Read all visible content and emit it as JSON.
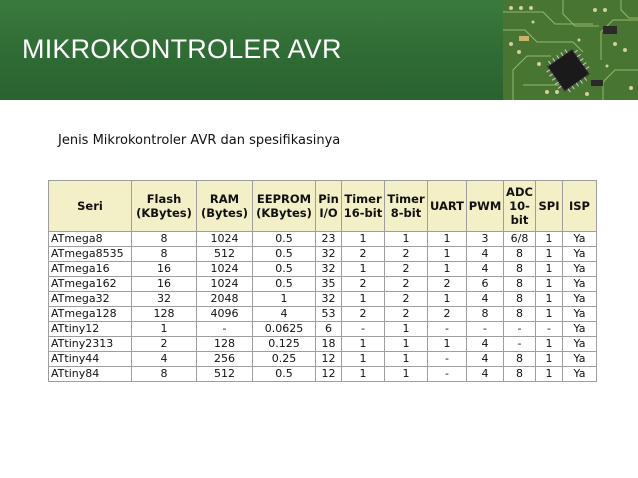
{
  "slide": {
    "title": "MIKROKONTROLER AVR",
    "subtitle": "Jenis Mikrokontroler AVR dan spesifikasinya"
  },
  "table": {
    "headers": [
      "Seri",
      "Flash (KBytes)",
      "RAM (Bytes)",
      "EEPROM (KBytes)",
      "Pin I/O",
      "Timer 16-bit",
      "Timer 8-bit",
      "UART",
      "PWM",
      "ADC 10-bit",
      "SPI",
      "ISP"
    ],
    "rows": [
      [
        "ATmega8",
        "8",
        "1024",
        "0.5",
        "23",
        "1",
        "1",
        "1",
        "3",
        "6/8",
        "1",
        "Ya"
      ],
      [
        "ATmega8535",
        "8",
        "512",
        "0.5",
        "32",
        "2",
        "2",
        "1",
        "4",
        "8",
        "1",
        "Ya"
      ],
      [
        "ATmega16",
        "16",
        "1024",
        "0.5",
        "32",
        "1",
        "2",
        "1",
        "4",
        "8",
        "1",
        "Ya"
      ],
      [
        "ATmega162",
        "16",
        "1024",
        "0.5",
        "35",
        "2",
        "2",
        "2",
        "6",
        "8",
        "1",
        "Ya"
      ],
      [
        "ATmega32",
        "32",
        "2048",
        "1",
        "32",
        "1",
        "2",
        "1",
        "4",
        "8",
        "1",
        "Ya"
      ],
      [
        "ATmega128",
        "128",
        "4096",
        "4",
        "53",
        "2",
        "2",
        "2",
        "8",
        "8",
        "1",
        "Ya"
      ],
      [
        "ATtiny12",
        "1",
        "-",
        "0.0625",
        "6",
        "-",
        "1",
        "-",
        "-",
        "-",
        "-",
        "Ya"
      ],
      [
        "ATtiny2313",
        "2",
        "128",
        "0.125",
        "18",
        "1",
        "1",
        "1",
        "4",
        "-",
        "1",
        "Ya"
      ],
      [
        "ATtiny44",
        "4",
        "256",
        "0.25",
        "12",
        "1",
        "1",
        "-",
        "4",
        "8",
        "1",
        "Ya"
      ],
      [
        "ATtiny84",
        "8",
        "512",
        "0.5",
        "12",
        "1",
        "1",
        "-",
        "4",
        "8",
        "1",
        "Ya"
      ]
    ]
  },
  "colors": {
    "banner": "#2f6b34",
    "header_fill": "#f3efc7",
    "grid": "#9e9e9e"
  }
}
